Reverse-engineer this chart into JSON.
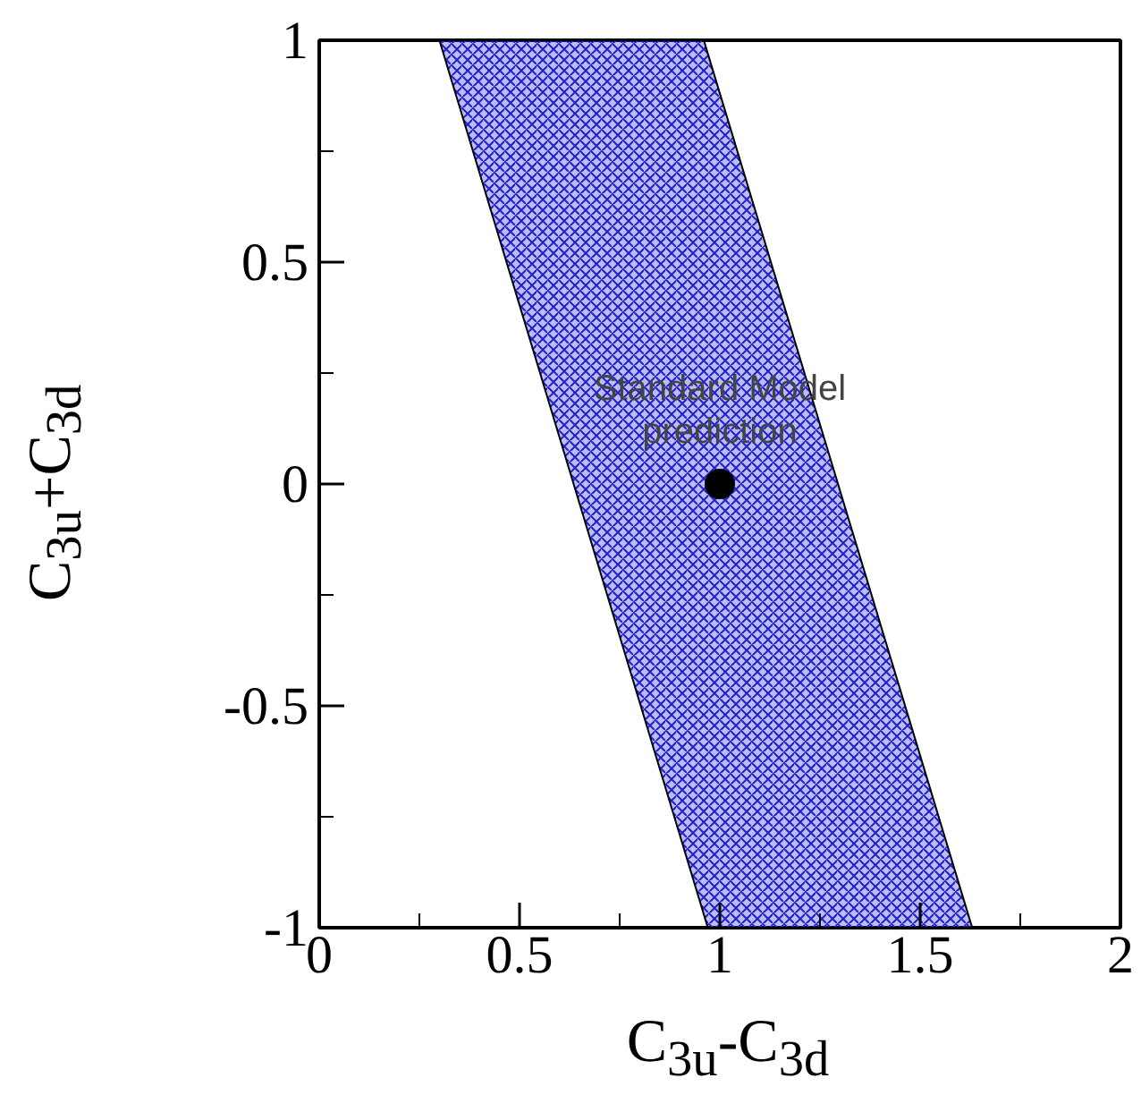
{
  "chart_data": {
    "type": "area",
    "xlabel": "C$_{3u}$-C$_{3d}$",
    "ylabel": "C$_{3u}$+C$_{3d}$",
    "xlim": [
      0,
      2
    ],
    "ylim": [
      -1,
      1
    ],
    "xticks": [
      0,
      {
        "value": 0.25,
        "label": null
      },
      0.5,
      {
        "value": 0.75,
        "label": null
      },
      1,
      {
        "value": 1.25,
        "label": null
      },
      1.5,
      {
        "value": 1.75,
        "label": null
      },
      2
    ],
    "yticks": [
      -1,
      {
        "value": -0.75,
        "label": null
      },
      -0.5,
      {
        "value": -0.25,
        "label": null
      },
      0,
      {
        "value": 0.25,
        "label": null
      },
      0.5,
      {
        "value": 0.75,
        "label": null
      },
      1
    ],
    "grid": false,
    "series": [
      {
        "color": "#2020d0",
        "x": [
          0.3,
          0.96,
          0.97,
          1.63
        ],
        "values": [
          null,
          null,
          null,
          null
        ],
        "lower": [
          1,
          -0.97,
          -1,
          -1
        ],
        "upper": [
          1,
          1,
          0.97,
          -1
        ]
      },
      {
        "type": "scatter",
        "color": "#000000",
        "marker": "circle",
        "x": [
          1
        ],
        "values": [
          0
        ]
      }
    ],
    "annotations": [
      {
        "text": "Standard Model\nprediction",
        "x": 1,
        "y": 0
      }
    ]
  }
}
